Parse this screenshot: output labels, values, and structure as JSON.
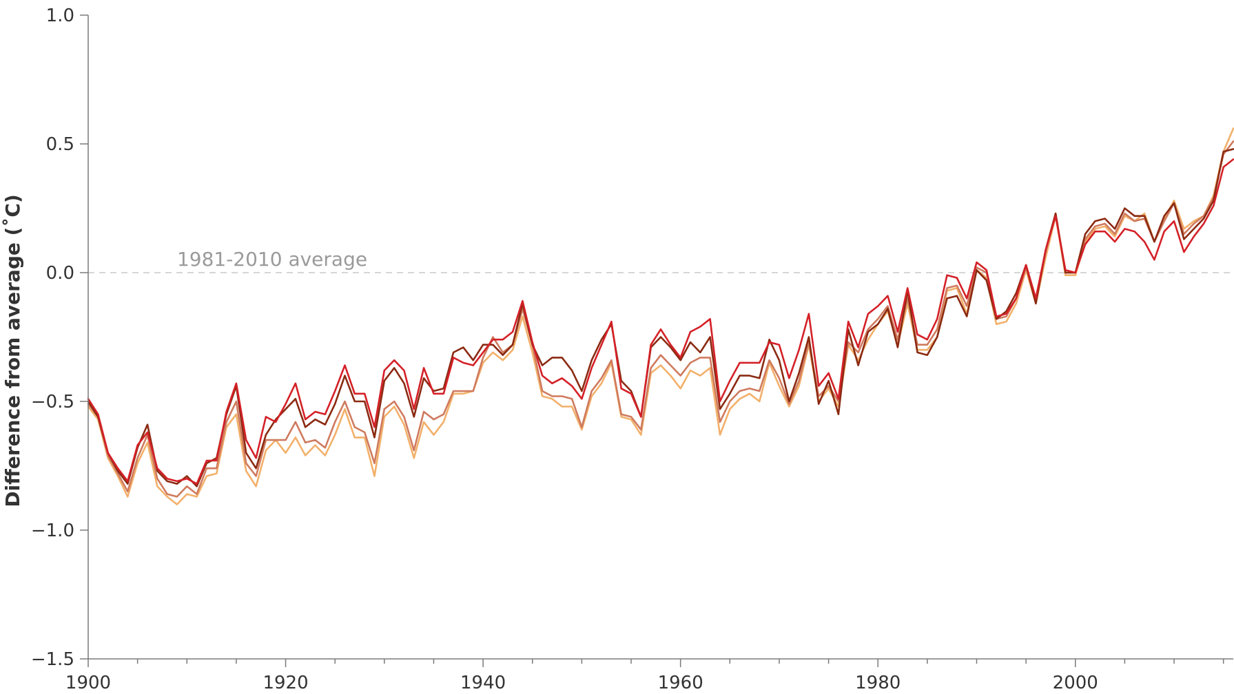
{
  "chart_data": {
    "type": "line",
    "title": "",
    "xlabel": "",
    "ylabel": "Difference from average (˚C)",
    "xlim": [
      1900,
      2016
    ],
    "ylim": [
      -1.5,
      1.0
    ],
    "x_ticks": [
      "1900",
      "1920",
      "1940",
      "1960",
      "1980",
      "2000"
    ],
    "y_ticks": [
      "1.0",
      "0.5",
      "0.0",
      "−0.5",
      "−1.0",
      "−1.5"
    ],
    "grid": false,
    "legend": "none",
    "reference_line": {
      "y": 0.0,
      "label": "1981-2010 average",
      "color": "#c8c8c8",
      "label_color": "#9a9a9a"
    },
    "x_start": 1900,
    "series": [
      {
        "color": "#f2b06a",
        "values": [
          -0.52,
          -0.57,
          -0.72,
          -0.79,
          -0.87,
          -0.74,
          -0.66,
          -0.83,
          -0.87,
          -0.9,
          -0.86,
          -0.87,
          -0.79,
          -0.78,
          -0.6,
          -0.55,
          -0.77,
          -0.83,
          -0.69,
          -0.65,
          -0.7,
          -0.64,
          -0.71,
          -0.67,
          -0.71,
          -0.63,
          -0.53,
          -0.64,
          -0.64,
          -0.79,
          -0.56,
          -0.52,
          -0.59,
          -0.72,
          -0.58,
          -0.63,
          -0.58,
          -0.47,
          -0.47,
          -0.46,
          -0.35,
          -0.31,
          -0.34,
          -0.3,
          -0.17,
          -0.31,
          -0.48,
          -0.49,
          -0.52,
          -0.52,
          -0.61,
          -0.48,
          -0.43,
          -0.35,
          -0.56,
          -0.57,
          -0.63,
          -0.39,
          -0.36,
          -0.4,
          -0.45,
          -0.38,
          -0.4,
          -0.37,
          -0.63,
          -0.53,
          -0.49,
          -0.47,
          -0.5,
          -0.35,
          -0.44,
          -0.52,
          -0.44,
          -0.28,
          -0.5,
          -0.45,
          -0.52,
          -0.28,
          -0.34,
          -0.26,
          -0.2,
          -0.15,
          -0.28,
          -0.12,
          -0.3,
          -0.3,
          -0.25,
          -0.07,
          -0.06,
          -0.16,
          0.01,
          -0.02,
          -0.2,
          -0.19,
          -0.12,
          0.01,
          -0.12,
          0.06,
          0.22,
          -0.01,
          -0.01,
          0.12,
          0.17,
          0.18,
          0.14,
          0.22,
          0.2,
          0.23,
          0.12,
          0.21,
          0.28,
          0.17,
          0.2,
          0.22,
          0.3,
          0.47,
          0.56
        ]
      },
      {
        "color": "#cf7a5e",
        "values": [
          -0.51,
          -0.56,
          -0.71,
          -0.78,
          -0.85,
          -0.72,
          -0.63,
          -0.8,
          -0.86,
          -0.87,
          -0.83,
          -0.86,
          -0.76,
          -0.76,
          -0.58,
          -0.5,
          -0.74,
          -0.79,
          -0.65,
          -0.65,
          -0.65,
          -0.58,
          -0.66,
          -0.65,
          -0.68,
          -0.58,
          -0.5,
          -0.6,
          -0.62,
          -0.74,
          -0.53,
          -0.5,
          -0.56,
          -0.69,
          -0.54,
          -0.57,
          -0.55,
          -0.46,
          -0.46,
          -0.46,
          -0.33,
          -0.25,
          -0.31,
          -0.28,
          -0.14,
          -0.28,
          -0.46,
          -0.48,
          -0.48,
          -0.49,
          -0.6,
          -0.46,
          -0.41,
          -0.34,
          -0.55,
          -0.56,
          -0.61,
          -0.37,
          -0.32,
          -0.36,
          -0.4,
          -0.35,
          -0.33,
          -0.33,
          -0.58,
          -0.5,
          -0.46,
          -0.45,
          -0.46,
          -0.34,
          -0.41,
          -0.51,
          -0.42,
          -0.27,
          -0.48,
          -0.44,
          -0.5,
          -0.27,
          -0.31,
          -0.22,
          -0.18,
          -0.13,
          -0.26,
          -0.1,
          -0.28,
          -0.28,
          -0.22,
          -0.06,
          -0.05,
          -0.13,
          0.02,
          0.0,
          -0.18,
          -0.17,
          -0.1,
          0.02,
          -0.1,
          0.08,
          0.23,
          0.0,
          0.0,
          0.13,
          0.18,
          0.19,
          0.15,
          0.23,
          0.2,
          0.21,
          0.12,
          0.2,
          0.27,
          0.15,
          0.19,
          0.22,
          0.29,
          0.46,
          0.51
        ]
      },
      {
        "color": "#8b2a12",
        "values": [
          -0.5,
          -0.56,
          -0.7,
          -0.77,
          -0.82,
          -0.68,
          -0.59,
          -0.77,
          -0.81,
          -0.82,
          -0.79,
          -0.83,
          -0.74,
          -0.72,
          -0.55,
          -0.44,
          -0.7,
          -0.76,
          -0.63,
          -0.57,
          -0.53,
          -0.49,
          -0.6,
          -0.57,
          -0.59,
          -0.51,
          -0.4,
          -0.5,
          -0.5,
          -0.64,
          -0.42,
          -0.37,
          -0.43,
          -0.56,
          -0.41,
          -0.46,
          -0.45,
          -0.31,
          -0.29,
          -0.34,
          -0.28,
          -0.28,
          -0.32,
          -0.28,
          -0.12,
          -0.28,
          -0.36,
          -0.33,
          -0.33,
          -0.38,
          -0.46,
          -0.34,
          -0.26,
          -0.2,
          -0.42,
          -0.46,
          -0.56,
          -0.29,
          -0.25,
          -0.29,
          -0.34,
          -0.27,
          -0.31,
          -0.25,
          -0.53,
          -0.47,
          -0.4,
          -0.4,
          -0.41,
          -0.26,
          -0.34,
          -0.5,
          -0.39,
          -0.25,
          -0.51,
          -0.42,
          -0.55,
          -0.22,
          -0.36,
          -0.23,
          -0.2,
          -0.14,
          -0.29,
          -0.07,
          -0.31,
          -0.32,
          -0.25,
          -0.1,
          -0.09,
          -0.17,
          0.01,
          -0.03,
          -0.18,
          -0.15,
          -0.08,
          0.03,
          -0.12,
          0.09,
          0.23,
          0.0,
          0.0,
          0.15,
          0.2,
          0.21,
          0.17,
          0.25,
          0.22,
          0.22,
          0.12,
          0.22,
          0.27,
          0.13,
          0.17,
          0.21,
          0.28,
          0.47,
          0.48
        ]
      },
      {
        "color": "#d42027",
        "values": [
          -0.49,
          -0.55,
          -0.7,
          -0.76,
          -0.81,
          -0.67,
          -0.62,
          -0.76,
          -0.8,
          -0.81,
          -0.8,
          -0.82,
          -0.73,
          -0.73,
          -0.54,
          -0.43,
          -0.65,
          -0.72,
          -0.56,
          -0.58,
          -0.51,
          -0.43,
          -0.57,
          -0.54,
          -0.55,
          -0.46,
          -0.36,
          -0.47,
          -0.47,
          -0.6,
          -0.38,
          -0.34,
          -0.38,
          -0.53,
          -0.37,
          -0.47,
          -0.47,
          -0.33,
          -0.35,
          -0.36,
          -0.31,
          -0.26,
          -0.26,
          -0.23,
          -0.11,
          -0.27,
          -0.4,
          -0.43,
          -0.41,
          -0.44,
          -0.49,
          -0.37,
          -0.28,
          -0.19,
          -0.45,
          -0.47,
          -0.56,
          -0.28,
          -0.22,
          -0.28,
          -0.33,
          -0.23,
          -0.21,
          -0.18,
          -0.5,
          -0.42,
          -0.35,
          -0.35,
          -0.35,
          -0.27,
          -0.28,
          -0.41,
          -0.3,
          -0.16,
          -0.44,
          -0.39,
          -0.49,
          -0.19,
          -0.29,
          -0.16,
          -0.13,
          -0.09,
          -0.23,
          -0.06,
          -0.24,
          -0.26,
          -0.18,
          -0.01,
          -0.02,
          -0.1,
          0.04,
          0.01,
          -0.17,
          -0.16,
          -0.1,
          0.03,
          -0.1,
          0.09,
          0.22,
          0.01,
          0.0,
          0.11,
          0.16,
          0.16,
          0.12,
          0.17,
          0.16,
          0.12,
          0.05,
          0.16,
          0.2,
          0.08,
          0.14,
          0.19,
          0.26,
          0.41,
          0.44
        ]
      }
    ]
  }
}
